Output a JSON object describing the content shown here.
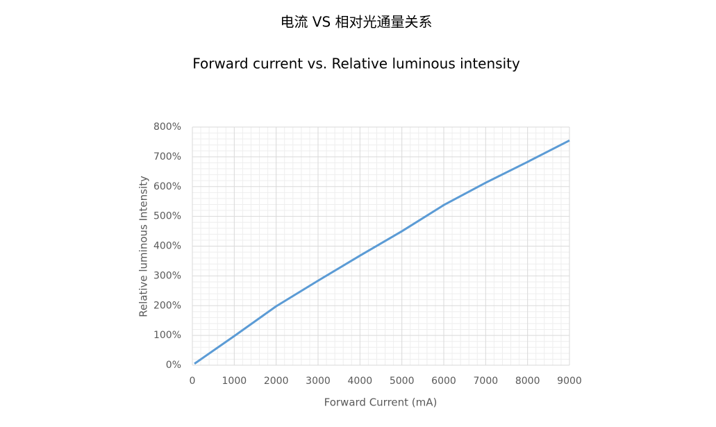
{
  "chart_data": {
    "type": "line",
    "title": "电流 VS 相对光通量关系",
    "subtitle": "Forward current vs. Relative luminous intensity",
    "x_label": "Forward Current (mA)",
    "y_label": "Relative luminous Intensity",
    "x": [
      50,
      1000,
      2000,
      3000,
      4000,
      5000,
      6000,
      7000,
      8000,
      9000
    ],
    "series": [
      {
        "name": "Relative luminous intensity",
        "color": "#5b9bd5",
        "values": [
          5,
          98,
          198,
          284,
          368,
          450,
          538,
          613,
          683,
          755
        ]
      }
    ],
    "xlim": [
      0,
      9000
    ],
    "xticks": [
      0,
      1000,
      2000,
      3000,
      4000,
      5000,
      6000,
      7000,
      8000,
      9000
    ],
    "ylim": [
      0,
      800
    ],
    "yticks": [
      {
        "value": 0,
        "label": "0%"
      },
      {
        "value": 100,
        "label": "100%"
      },
      {
        "value": 200,
        "label": "200%"
      },
      {
        "value": 300,
        "label": "300%"
      },
      {
        "value": 400,
        "label": "400%"
      },
      {
        "value": 500,
        "label": "500%"
      },
      {
        "value": 600,
        "label": "600%"
      },
      {
        "value": 700,
        "label": "700%"
      },
      {
        "value": 800,
        "label": "800%"
      }
    ],
    "grid": true,
    "minor_grid_divisions": 5
  }
}
